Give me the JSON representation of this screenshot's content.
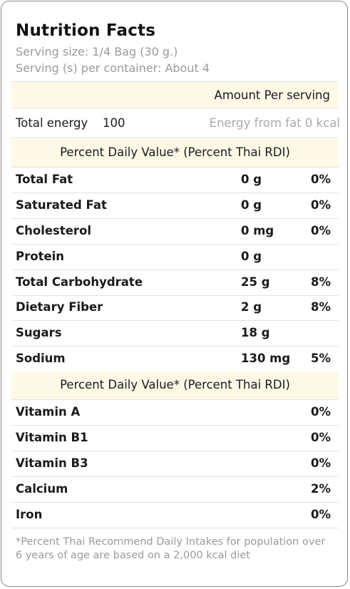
{
  "title": "Nutrition Facts",
  "serving_size": "Serving size:  1/4 Bag (30 g.)",
  "servings_per_container": "Serving (s) per container:  About 4",
  "amount_header": "Amount Per serving",
  "energy": {
    "label": "Total energy",
    "value": "100",
    "from_fat": "Energy from fat 0 kcal"
  },
  "pdv_header_1": "Percent Daily Value* (Percent Thai RDI)",
  "nutrients": [
    {
      "name": "Total Fat",
      "amount": "0 g",
      "percent": "0%"
    },
    {
      "name": "Saturated Fat",
      "amount": "0 g",
      "percent": "0%"
    },
    {
      "name": "Cholesterol",
      "amount": "0 mg",
      "percent": "0%"
    },
    {
      "name": "Protein",
      "amount": "0 g",
      "percent": ""
    },
    {
      "name": "Total Carbohydrate",
      "amount": "25 g",
      "percent": "8%"
    },
    {
      "name": "Dietary Fiber",
      "amount": "2 g",
      "percent": "8%"
    },
    {
      "name": "Sugars",
      "amount": "18 g",
      "percent": ""
    },
    {
      "name": "Sodium",
      "amount": "130 mg",
      "percent": "5%"
    }
  ],
  "pdv_header_2": "Percent Daily Value* (Percent Thai RDI)",
  "vitamins": [
    {
      "name": "Vitamin A",
      "percent": "0%"
    },
    {
      "name": "Vitamin B1",
      "percent": "0%"
    },
    {
      "name": "Vitamin B3",
      "percent": "0%"
    },
    {
      "name": "Calcium",
      "percent": "2%"
    },
    {
      "name": "Iron",
      "percent": "0%"
    }
  ],
  "footnote": "*Percent Thai Recommend Daily Intakes for population over 6 years of age are based on a 2,000 kcal diet",
  "colors": {
    "band": "#fdf9e6",
    "border": "#8a8a8a",
    "muted": "#9a9a9a"
  }
}
